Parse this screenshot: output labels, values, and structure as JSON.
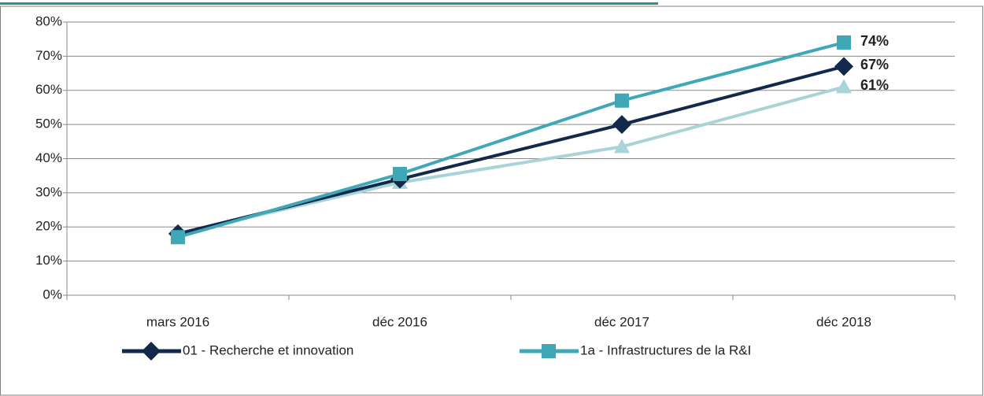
{
  "chart_data": {
    "type": "line",
    "categories": [
      "mars 2016",
      "déc 2016",
      "déc 2017",
      "déc 2018"
    ],
    "series": [
      {
        "name": "01 - Recherche et innovation",
        "color": "#13294b",
        "marker": "diamond",
        "values": [
          18,
          34,
          50,
          67
        ],
        "value_labels": [
          null,
          null,
          null,
          "67%"
        ]
      },
      {
        "name": "1a - Infrastructures de la R&I",
        "color": "#3fa7b5",
        "marker": "square",
        "values": [
          17,
          35.5,
          57,
          74
        ],
        "value_labels": [
          null,
          null,
          null,
          "74%"
        ]
      },
      {
        "color": "#a8d3d9",
        "marker": "triangle",
        "values": [
          18,
          33,
          43.5,
          61
        ],
        "value_labels": [
          null,
          null,
          null,
          "61%"
        ]
      }
    ],
    "ylim": [
      0,
      80
    ],
    "yticks": [
      {
        "value": 0,
        "label": "0%"
      },
      {
        "value": 10,
        "label": "10%"
      },
      {
        "value": 20,
        "label": "20%"
      },
      {
        "value": 30,
        "label": "30%"
      },
      {
        "value": 40,
        "label": "40%"
      },
      {
        "value": 50,
        "label": "50%"
      },
      {
        "value": 60,
        "label": "60%"
      },
      {
        "value": 70,
        "label": "70%"
      },
      {
        "value": 80,
        "label": "80%"
      }
    ],
    "grid": true
  }
}
